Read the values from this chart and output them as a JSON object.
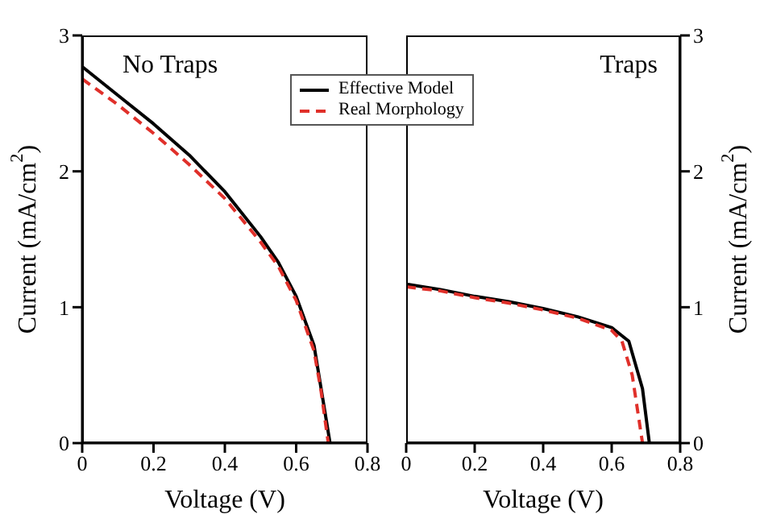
{
  "chart_data": [
    {
      "type": "line",
      "title": "No Traps",
      "xlabel": "Voltage (V)",
      "ylabel": "Current (mA/cm$^{2}$)",
      "xlim": [
        0,
        0.8
      ],
      "xticks": [
        0,
        0.2,
        0.4,
        0.6,
        0.8
      ],
      "ylim": [
        0,
        3
      ],
      "yticks": [
        0,
        1,
        2,
        3
      ],
      "legend": "top right",
      "series": [
        {
          "name": "Effective Model",
          "color": "#000000",
          "line_style": "solid",
          "x": [
            0,
            0.1,
            0.2,
            0.3,
            0.4,
            0.5,
            0.55,
            0.6,
            0.65,
            0.67,
            0.695
          ],
          "values": [
            2.77,
            2.56,
            2.35,
            2.12,
            1.85,
            1.52,
            1.33,
            1.08,
            0.72,
            0.4,
            0
          ]
        },
        {
          "name": "Real Morphology",
          "color": "#e0302a",
          "line_style": "dashed",
          "x": [
            0,
            0.1,
            0.2,
            0.3,
            0.4,
            0.5,
            0.55,
            0.6,
            0.65,
            0.67,
            0.69
          ],
          "values": [
            2.68,
            2.49,
            2.28,
            2.05,
            1.8,
            1.48,
            1.3,
            1.05,
            0.68,
            0.38,
            0
          ]
        }
      ]
    },
    {
      "type": "line",
      "title": "Traps",
      "xlabel": "Voltage (V)",
      "ylabel": "Current (mA/cm$^{2}$)",
      "xlim": [
        0,
        0.8
      ],
      "xticks": [
        0,
        0.2,
        0.4,
        0.6,
        0.8
      ],
      "ylim": [
        0,
        3
      ],
      "yticks": [
        0,
        1,
        2,
        3
      ],
      "series": [
        {
          "color": "#000000",
          "line_style": "solid",
          "x": [
            0,
            0.1,
            0.2,
            0.3,
            0.4,
            0.5,
            0.6,
            0.65,
            0.69,
            0.71
          ],
          "values": [
            1.17,
            1.13,
            1.08,
            1.04,
            0.99,
            0.93,
            0.85,
            0.75,
            0.4,
            0
          ]
        },
        {
          "color": "#e0302a",
          "line_style": "dashed",
          "x": [
            0,
            0.1,
            0.2,
            0.3,
            0.4,
            0.5,
            0.6,
            0.63,
            0.66,
            0.69
          ],
          "values": [
            1.15,
            1.12,
            1.07,
            1.03,
            0.98,
            0.92,
            0.83,
            0.75,
            0.5,
            0
          ]
        }
      ]
    }
  ]
}
